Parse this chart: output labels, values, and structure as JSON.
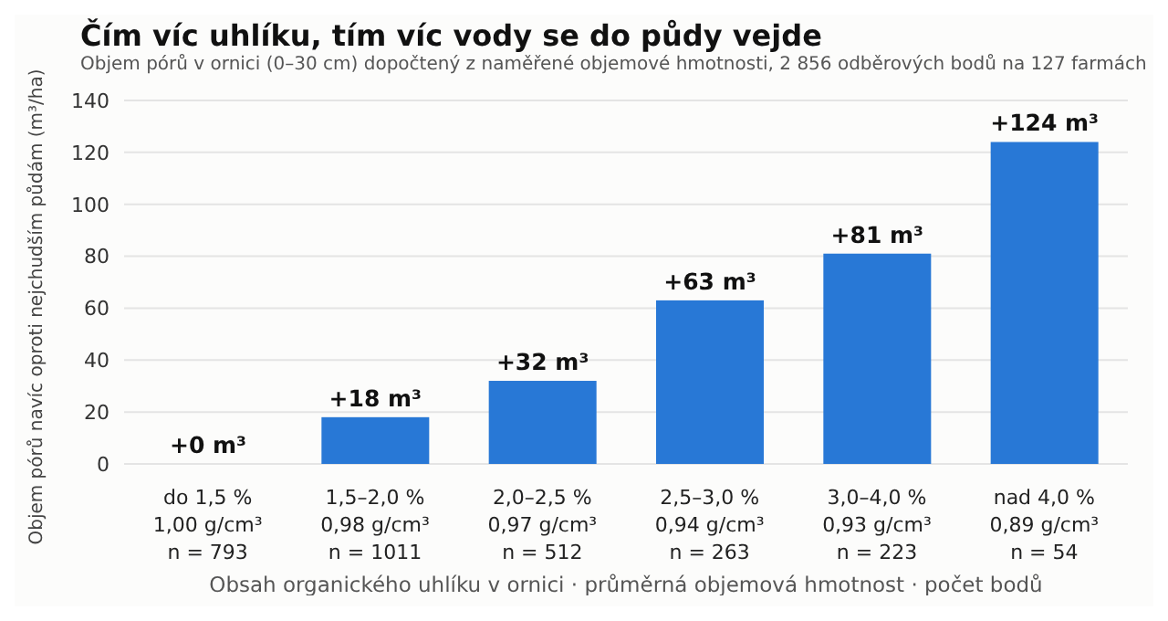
{
  "chart_data": {
    "type": "bar",
    "title": "Čím víc uhlíku, tím víc vody se do půdy vejde",
    "subtitle": "Objem pórů v ornici (0–30 cm) dopočtený z naměřené objemové hmotnosti, 2 856 odběrových bodů na 127 farmách",
    "xlabel": "Obsah organického uhlíku v ornici  ·  průměrná objemová hmotnost  ·  počet bodů",
    "ylabel": "Objem pórů navíc oproti nejchudším půdám (m³/ha)",
    "categories": [
      "do 1,5 %\n1,00 g/cm³\nn = 793",
      "1,5–2,0 %\n0,98 g/cm³\nn = 1011",
      "2,0–2,5 %\n0,97 g/cm³\nn = 512",
      "2,5–3,0 %\n0,94 g/cm³\nn = 263",
      "3,0–4,0 %\n0,93 g/cm³\nn = 223",
      "nad 4,0 %\n0,89 g/cm³\nn = 54"
    ],
    "values": [
      0,
      18,
      32,
      63,
      81,
      124
    ],
    "value_labels": [
      "+0 m³",
      "+18 m³",
      "+32 m³",
      "+63 m³",
      "+81 m³",
      "+124 m³"
    ],
    "color": "#2878d6",
    "ylim": [
      0,
      140
    ],
    "yticks": [
      0,
      20,
      40,
      60,
      80,
      100,
      120,
      140
    ],
    "grid": "y"
  }
}
